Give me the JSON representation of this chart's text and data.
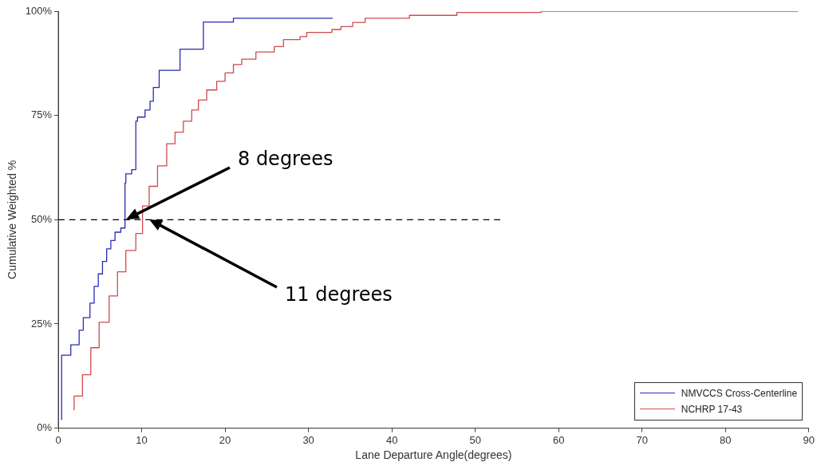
{
  "chart_data": {
    "type": "step",
    "xlabel": "Lane Departure Angle(degrees)",
    "ylabel": "Cumulative Weighted %",
    "xlim": [
      0,
      90
    ],
    "xticks": [
      0,
      10,
      20,
      30,
      40,
      50,
      60,
      70,
      80,
      90
    ],
    "ylim": [
      0,
      100
    ],
    "yticks": [
      {
        "value": 0,
        "label": "0%"
      },
      {
        "value": 25,
        "label": "25%"
      },
      {
        "value": 50,
        "label": "50%"
      },
      {
        "value": 75,
        "label": "75%"
      },
      {
        "value": 100,
        "label": "100%"
      }
    ],
    "grid": false,
    "legend": "bottom right",
    "series": [
      {
        "name": "NMVCCS Cross-Centerline",
        "color": "#2b2bb0",
        "x": [
          0.4,
          1.5,
          2.5,
          3,
          3.8,
          4.3,
          4.8,
          5.3,
          5.8,
          6.3,
          6.8,
          7.5,
          8,
          8.1,
          8.8,
          9.3,
          9.5,
          10.4,
          11,
          11.4,
          12.1,
          14.6,
          14.6,
          17.4,
          21,
          24.7,
          32.9
        ],
        "values": [
          2,
          17.5,
          20,
          23.5,
          26.5,
          30,
          34,
          37,
          40,
          43,
          45,
          47,
          48,
          58.8,
          61,
          62,
          73.6,
          74.6,
          76.3,
          78.4,
          81.7,
          85.8,
          88.8,
          90.9,
          97.4,
          98.3,
          98.3
        ]
      },
      {
        "name": "NCHRP 17-43",
        "color": "#d04a4a",
        "x": [
          1.9,
          2.9,
          3.9,
          4.9,
          6.1,
          7.1,
          8.1,
          9.3,
          10.1,
          10.9,
          11.9,
          13,
          14,
          15,
          16,
          16.8,
          17.8,
          19,
          20,
          21,
          22,
          23.7,
          25.9,
          27,
          29,
          29.8,
          32.8,
          33.9,
          35.3,
          36.8,
          42.1,
          47.8,
          57.9,
          63.1,
          88.7
        ],
        "values": [
          4.3,
          7.7,
          12.8,
          19.3,
          25.4,
          31.7,
          37.5,
          42.6,
          46.7,
          53.3,
          58,
          62.9,
          68.2,
          71,
          73.6,
          76.3,
          78.7,
          81.1,
          83.2,
          85.2,
          87.2,
          88.5,
          90.2,
          91.5,
          93.2,
          93.9,
          94.9,
          95.6,
          96.3,
          97.3,
          98.3,
          99,
          99.7,
          100,
          100
        ]
      },
      {
        "type": "line",
        "color": "#000000",
        "line_style": "dashed",
        "x": [
          0,
          53
        ],
        "values": [
          50,
          50
        ]
      }
    ],
    "annotations": [
      "8 degrees",
      "11 degrees"
    ]
  }
}
